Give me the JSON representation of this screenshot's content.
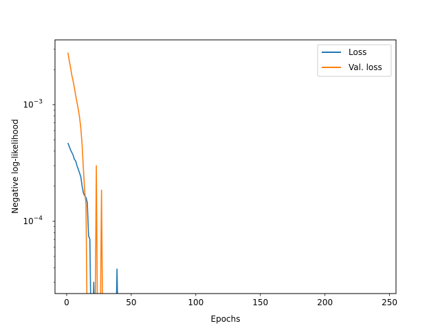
{
  "chart_data": {
    "type": "line",
    "xlabel": "Epochs",
    "ylabel": "Negative log-likelihood",
    "yscale": "log",
    "xlim": [
      -9,
      255
    ],
    "ylim": [
      2.4e-05,
      0.0036
    ],
    "x_ticks": [
      0,
      50,
      100,
      150,
      200,
      250
    ],
    "y_ticks": [
      {
        "value": 0.001,
        "base": "10",
        "exp": "−3"
      },
      {
        "value": 0.0001,
        "base": "10",
        "exp": "−4"
      }
    ],
    "legend_position": "top-right",
    "series": [
      {
        "name": "Loss",
        "color": "#1f77b4",
        "points": [
          [
            1,
            0.00047
          ],
          [
            2,
            0.00044
          ],
          [
            3,
            0.00041
          ],
          [
            4,
            0.00039
          ],
          [
            5,
            0.00037
          ],
          [
            6,
            0.00034
          ],
          [
            7,
            0.00033
          ],
          [
            8,
            0.0003
          ],
          [
            9,
            0.00028
          ],
          [
            10,
            0.00026
          ],
          [
            11,
            0.00024
          ],
          [
            12,
            0.0002
          ],
          [
            13,
            0.000175
          ],
          [
            14,
            0.000165
          ],
          [
            15,
            0.00016
          ],
          [
            16,
            0.000145
          ],
          [
            17,
            7.5e-05
          ],
          [
            18,
            7e-05
          ],
          [
            19,
            1e-05
          ],
          [
            20,
            1e-05
          ],
          [
            21,
            3e-05
          ],
          [
            22,
            1e-05
          ],
          [
            38,
            1e-05
          ],
          [
            39,
            3.9e-05
          ],
          [
            40,
            1e-05
          ]
        ]
      },
      {
        "name": "Val. loss",
        "color": "#ff7f0e",
        "points": [
          [
            1,
            0.0028
          ],
          [
            2,
            0.0024
          ],
          [
            3,
            0.0021
          ],
          [
            4,
            0.0018
          ],
          [
            5,
            0.0016
          ],
          [
            6,
            0.0014
          ],
          [
            7,
            0.0012
          ],
          [
            8,
            0.00105
          ],
          [
            9,
            0.00092
          ],
          [
            10,
            0.00078
          ],
          [
            11,
            0.00063
          ],
          [
            12,
            0.00045
          ],
          [
            13,
            0.00028
          ],
          [
            14,
            0.00018
          ],
          [
            15,
            0.00014
          ],
          [
            16,
            1e-05
          ],
          [
            22,
            1e-05
          ],
          [
            23,
            0.0003
          ],
          [
            24,
            1e-05
          ],
          [
            26,
            1e-05
          ],
          [
            27,
            0.000185
          ],
          [
            28,
            1e-05
          ]
        ]
      }
    ]
  }
}
